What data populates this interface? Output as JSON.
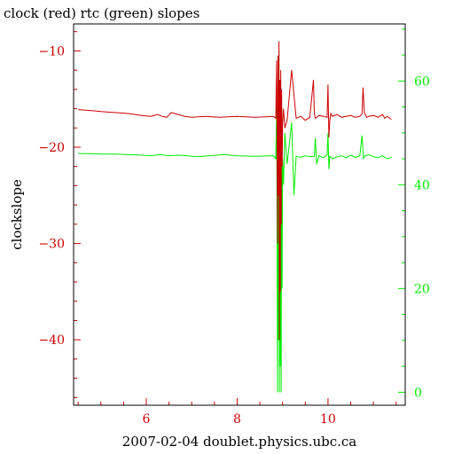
{
  "chart_data": {
    "type": "line",
    "title": "clock (red) rtc (green) slopes",
    "xlabel": "2007-02-04 doublet.physics.ubc.ca",
    "ylabel": "clockslope",
    "x_range": [
      4.4,
      11.7
    ],
    "x_ticks": [
      {
        "value": 6,
        "label": "6"
      },
      {
        "value": 8,
        "label": "8"
      },
      {
        "value": 10,
        "label": "10"
      }
    ],
    "y_left": {
      "range": [
        -46.8,
        -7.2
      ],
      "color": "#cc0000",
      "ticks": [
        {
          "value": -10,
          "label": "−10"
        },
        {
          "value": -20,
          "label": "−20"
        },
        {
          "value": -30,
          "label": "−30"
        },
        {
          "value": -40,
          "label": "−40"
        }
      ]
    },
    "y_right": {
      "range": [
        -2.5,
        71
      ],
      "color": "#00ee00",
      "ticks": [
        {
          "value": 0,
          "label": "0"
        },
        {
          "value": 20,
          "label": "20"
        },
        {
          "value": 40,
          "label": "40"
        },
        {
          "value": 60,
          "label": "60"
        }
      ]
    },
    "series": [
      {
        "name": "clock",
        "color": "#cc0000",
        "axis": "left",
        "x": [
          4.5,
          4.8,
          5.0,
          5.3,
          5.6,
          5.9,
          6.1,
          6.25,
          6.35,
          6.45,
          6.55,
          6.7,
          6.85,
          7.0,
          7.3,
          7.6,
          8.0,
          8.4,
          8.8,
          8.85,
          8.87,
          8.89,
          8.9,
          8.91,
          8.92,
          8.93,
          8.94,
          8.95,
          8.96,
          8.97,
          8.98,
          8.99,
          9.0,
          9.02,
          9.05,
          9.1,
          9.2,
          9.3,
          9.4,
          9.5,
          9.6,
          9.68,
          9.7,
          9.72,
          9.75,
          9.8,
          9.9,
          9.98,
          10.0,
          10.02,
          10.04,
          10.06,
          10.1,
          10.2,
          10.3,
          10.4,
          10.5,
          10.6,
          10.7,
          10.75,
          10.77,
          10.8,
          10.85,
          10.9,
          11.0,
          11.1,
          11.2,
          11.25,
          11.3,
          11.4
        ],
        "y": [
          -16.1,
          -16.2,
          -16.3,
          -16.4,
          -16.5,
          -16.7,
          -16.8,
          -16.6,
          -16.8,
          -16.9,
          -16.4,
          -16.6,
          -16.8,
          -16.9,
          -16.8,
          -16.9,
          -16.8,
          -16.9,
          -16.8,
          -17.0,
          -11.0,
          -30.0,
          -10.5,
          -25.0,
          -9.0,
          -40.0,
          -13.0,
          -35.0,
          -12.0,
          -28.0,
          -14.0,
          -22.0,
          -17.5,
          -16.0,
          -18.0,
          -17.2,
          -12.0,
          -17.0,
          -16.8,
          -17.2,
          -16.9,
          -13.0,
          -16.5,
          -17.0,
          -16.9,
          -16.7,
          -16.8,
          -16.9,
          -13.5,
          -19.0,
          -17.2,
          -16.5,
          -16.8,
          -16.6,
          -16.9,
          -16.8,
          -16.7,
          -16.9,
          -16.8,
          -16.5,
          -13.8,
          -16.4,
          -16.9,
          -16.8,
          -16.7,
          -16.9,
          -16.6,
          -17.0,
          -16.8,
          -17.1
        ]
      },
      {
        "name": "rtc",
        "color": "#00ee00",
        "axis": "right",
        "x": [
          4.5,
          4.8,
          5.0,
          5.3,
          5.6,
          5.9,
          6.1,
          6.3,
          6.5,
          6.7,
          6.9,
          7.1,
          7.4,
          7.7,
          8.0,
          8.4,
          8.8,
          8.85,
          8.87,
          8.89,
          8.9,
          8.91,
          8.92,
          8.93,
          8.94,
          8.95,
          8.96,
          8.97,
          8.98,
          8.99,
          9.0,
          9.02,
          9.05,
          9.1,
          9.2,
          9.25,
          9.3,
          9.4,
          9.5,
          9.6,
          9.7,
          9.72,
          9.75,
          9.8,
          9.9,
          9.98,
          10.0,
          10.02,
          10.04,
          10.1,
          10.2,
          10.3,
          10.4,
          10.5,
          10.6,
          10.7,
          10.75,
          10.78,
          10.8,
          10.9,
          11.0,
          11.1,
          11.2,
          11.3,
          11.4
        ],
        "y": [
          46.0,
          46.0,
          45.9,
          45.9,
          45.8,
          45.7,
          45.6,
          45.8,
          45.6,
          45.7,
          45.6,
          45.4,
          45.6,
          45.8,
          45.6,
          45.5,
          45.6,
          45.0,
          55.0,
          0.0,
          62.0,
          10.0,
          66.0,
          0.0,
          60.0,
          5.0,
          58.0,
          0.0,
          55.0,
          20.0,
          45.0,
          40.0,
          50.0,
          44.0,
          52.0,
          38.0,
          45.5,
          45.3,
          45.6,
          45.4,
          45.5,
          49.0,
          44.0,
          45.6,
          45.2,
          45.8,
          50.0,
          43.0,
          45.5,
          45.0,
          45.4,
          45.6,
          45.2,
          45.7,
          45.3,
          45.6,
          49.5,
          45.0,
          45.5,
          45.8,
          45.4,
          45.2,
          45.6,
          45.0,
          45.3
        ]
      }
    ]
  }
}
